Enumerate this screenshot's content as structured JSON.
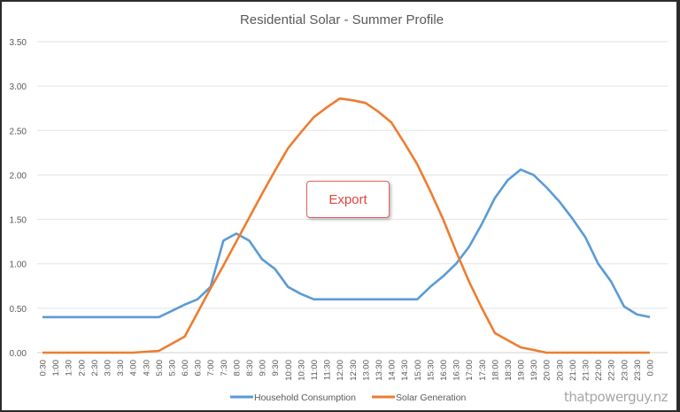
{
  "chart_data": {
    "type": "line",
    "title": "Residential Solar - Summer Profile",
    "xlabel": "",
    "ylabel": "",
    "ylim": [
      0,
      3.5
    ],
    "yticks": [
      "0.00",
      "0.50",
      "1.00",
      "1.50",
      "2.00",
      "2.50",
      "3.00",
      "3.50"
    ],
    "grid": true,
    "legend_position": "bottom",
    "x": [
      "0:30",
      "1:00",
      "1:30",
      "2:00",
      "2:30",
      "3:00",
      "3:30",
      "4:00",
      "4:30",
      "5:00",
      "5:30",
      "6:00",
      "6:30",
      "7:00",
      "7:30",
      "8:00",
      "8:30",
      "9:00",
      "9:30",
      "10:00",
      "10:30",
      "11:00",
      "11:30",
      "12:00",
      "12:30",
      "13:00",
      "13:30",
      "14:00",
      "14:30",
      "15:00",
      "15:30",
      "16:00",
      "16:30",
      "17:00",
      "17:30",
      "18:00",
      "18:30",
      "19:00",
      "19:30",
      "20:00",
      "20:30",
      "21:00",
      "21:30",
      "22:00",
      "22:30",
      "23:00",
      "23:30",
      "0:00"
    ],
    "series": [
      {
        "name": "Household Consumption",
        "color": "#5b9bd5",
        "values": [
          0.4,
          0.4,
          0.4,
          0.4,
          0.4,
          0.4,
          0.4,
          0.4,
          0.4,
          0.4,
          0.47,
          0.54,
          0.6,
          0.74,
          1.26,
          1.34,
          1.26,
          1.05,
          0.94,
          0.74,
          0.66,
          0.6,
          0.6,
          0.6,
          0.6,
          0.6,
          0.6,
          0.6,
          0.6,
          0.6,
          0.74,
          0.86,
          1.0,
          1.19,
          1.45,
          1.74,
          1.94,
          2.06,
          2.0,
          1.86,
          1.7,
          1.51,
          1.3,
          1.0,
          0.8,
          0.52,
          0.43,
          0.4
        ]
      },
      {
        "name": "Solar Generation",
        "color": "#ed7d31",
        "values": [
          0,
          0,
          0,
          0,
          0,
          0,
          0,
          0,
          0.01,
          0.02,
          0.1,
          0.18,
          0.45,
          0.72,
          0.98,
          1.25,
          1.52,
          1.79,
          2.05,
          2.3,
          2.48,
          2.65,
          2.76,
          2.86,
          2.84,
          2.81,
          2.71,
          2.59,
          2.36,
          2.12,
          1.82,
          1.5,
          1.14,
          0.8,
          0.5,
          0.22,
          0.14,
          0.06,
          0.03,
          0,
          0,
          0,
          0,
          0,
          0,
          0,
          0,
          0
        ]
      }
    ],
    "annotations": [
      "Export"
    ]
  },
  "watermark": "thatpowerguy.nz"
}
